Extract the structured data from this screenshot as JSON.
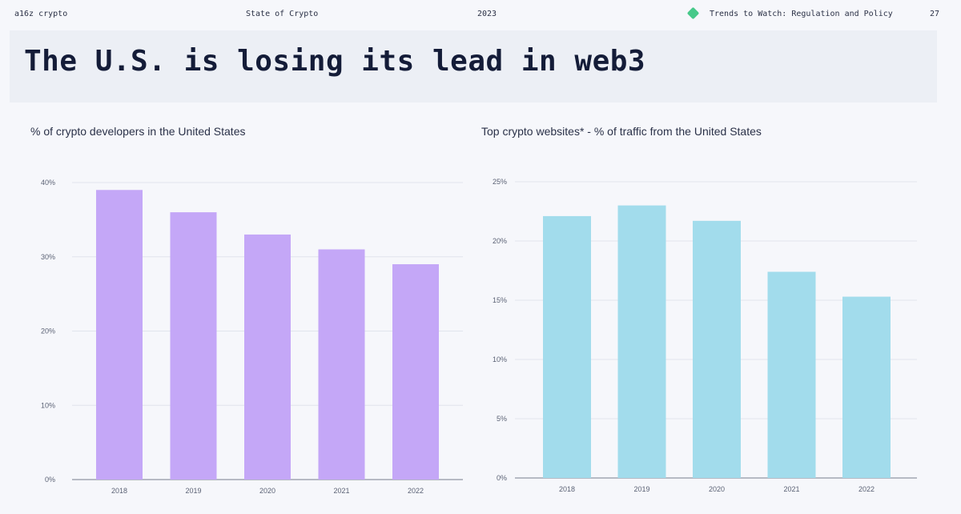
{
  "header": {
    "brand": "a16z crypto",
    "report": "State of Crypto",
    "year": "2023",
    "section": "Trends to Watch: Regulation and Policy",
    "page_number": "27",
    "section_icon": "green-diamond-icon"
  },
  "slide": {
    "title": "The U.S. is losing its lead in web3"
  },
  "chart_data": [
    {
      "type": "bar",
      "title": "% of crypto developers in the United States",
      "categories": [
        "2018",
        "2019",
        "2020",
        "2021",
        "2022"
      ],
      "values": [
        39,
        36,
        33,
        31,
        29
      ],
      "ylim": [
        0,
        40
      ],
      "yticks": [
        "0%",
        "10%",
        "20%",
        "30%",
        "40%"
      ],
      "color": "#c4a7f7",
      "grid": true
    },
    {
      "type": "bar",
      "title": "Top crypto websites* - % of traffic from the United States",
      "categories": [
        "2018",
        "2019",
        "2020",
        "2021",
        "2022"
      ],
      "values": [
        22.1,
        23.0,
        21.7,
        17.4,
        15.3
      ],
      "ylim": [
        0,
        25
      ],
      "yticks": [
        "0%",
        "5%",
        "10%",
        "15%",
        "20%",
        "25%"
      ],
      "color": "#a2dcec",
      "grid": true
    }
  ]
}
